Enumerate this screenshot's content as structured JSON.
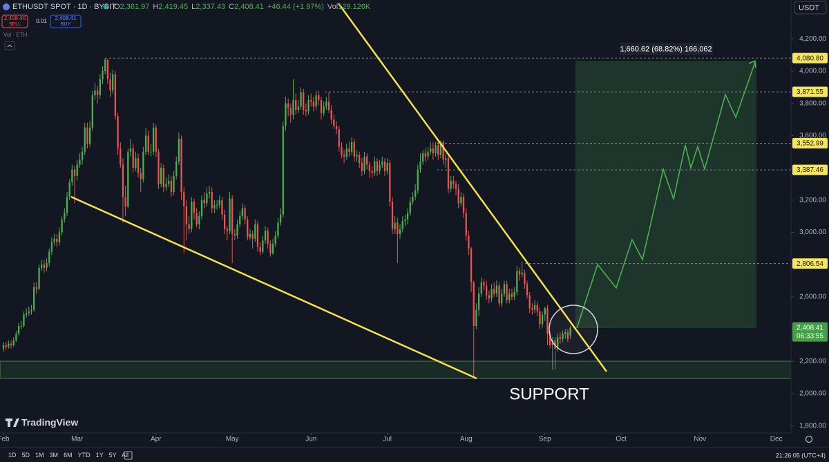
{
  "header": {
    "symbol": "ETHUSDT SPOT · 1D · BYBIT",
    "ohlc": [
      {
        "key": "O",
        "value": "2,361.97"
      },
      {
        "key": "H",
        "value": "2,419.45"
      },
      {
        "key": "L",
        "value": "2,337.43"
      },
      {
        "key": "C",
        "value": "2,408.41"
      }
    ],
    "change": "+46.44 (+1.97%)",
    "volume_key": "Vol",
    "volume": "129.126K",
    "sell_price": "2,408.40",
    "sell": "SELL",
    "spread": "0.01",
    "buy_price": "2,408.41",
    "buy": "BUY",
    "volume_pane": "Vol · ETH"
  },
  "currency": "USDT",
  "logo": "TradingView",
  "toolbar": {
    "ranges": [
      "1D",
      "5D",
      "1M",
      "3M",
      "6M",
      "YTD",
      "1Y",
      "5Y",
      "All"
    ],
    "clock": "21:26:05 (UTC+4)"
  },
  "chart_data": {
    "type": "candlestick",
    "up_color": "#4caf50",
    "down_color": "#ef5350",
    "grid": false,
    "xlim": [
      -1.36,
      309.8
    ],
    "xticks": [
      {
        "value": 0,
        "label": "Feb"
      },
      {
        "value": 29,
        "label": "Mar"
      },
      {
        "value": 60,
        "label": "Apr"
      },
      {
        "value": 90,
        "label": "May"
      },
      {
        "value": 121,
        "label": "Jun"
      },
      {
        "value": 151,
        "label": "Jul"
      },
      {
        "value": 182,
        "label": "Aug"
      },
      {
        "value": 213,
        "label": "Sep"
      },
      {
        "value": 243,
        "label": "Oct"
      },
      {
        "value": 274,
        "label": "Nov"
      },
      {
        "value": 304,
        "label": "Dec"
      }
    ],
    "ylim": [
      1756,
      4441
    ],
    "yticks": [
      {
        "value": 1800,
        "label": "1,800.00"
      },
      {
        "value": 2000,
        "label": "2,000.00"
      },
      {
        "value": 2200,
        "label": "2,200.00"
      },
      {
        "value": 2400,
        "label": "2,400.00"
      },
      {
        "value": 2600,
        "label": "2,600.00"
      },
      {
        "value": 2800,
        "label": "2,800.00"
      },
      {
        "value": 3000,
        "label": "3,000.00"
      },
      {
        "value": 3200,
        "label": "3,200.00"
      },
      {
        "value": 3400,
        "label": "3,400.00"
      },
      {
        "value": 3600,
        "label": "3,600.00"
      },
      {
        "value": 3800,
        "label": "3,800.00"
      },
      {
        "value": 4000,
        "label": "4,000.00"
      },
      {
        "value": 4200,
        "label": "4,200.00"
      }
    ],
    "price_levels": [
      {
        "value": 4080.8,
        "label": "4,080.80"
      },
      {
        "value": 3871.55,
        "label": "3,871.55"
      },
      {
        "value": 3552.99,
        "label": "3,552.99"
      },
      {
        "value": 3387.46,
        "label": "3,387.46"
      },
      {
        "value": 2806.54,
        "label": "2,806.54"
      }
    ],
    "last_price": {
      "value": 2408.41,
      "label": "2,408.41"
    },
    "countdown": "06:33:55",
    "measure_label": "1,660.62 (68.82%) 166,062",
    "annotation": "SUPPORT",
    "x": [
      0,
      1,
      2,
      3,
      4,
      5,
      6,
      7,
      8,
      9,
      10,
      11,
      12,
      13,
      14,
      15,
      16,
      17,
      18,
      19,
      20,
      21,
      22,
      23,
      24,
      25,
      26,
      27,
      28,
      29,
      30,
      31,
      32,
      33,
      34,
      35,
      36,
      37,
      38,
      39,
      40,
      41,
      42,
      43,
      44,
      45,
      46,
      47,
      48,
      49,
      50,
      51,
      52,
      53,
      54,
      55,
      56,
      57,
      58,
      59,
      60,
      61,
      62,
      63,
      64,
      65,
      66,
      67,
      68,
      69,
      70,
      71,
      72,
      73,
      74,
      75,
      76,
      77,
      78,
      79,
      80,
      81,
      82,
      83,
      84,
      85,
      86,
      87,
      88,
      89,
      90,
      91,
      92,
      93,
      94,
      95,
      96,
      97,
      98,
      99,
      100,
      101,
      102,
      103,
      104,
      105,
      106,
      107,
      108,
      109,
      110,
      111,
      112,
      113,
      114,
      115,
      116,
      117,
      118,
      119,
      120,
      121,
      122,
      123,
      124,
      125,
      126,
      127,
      128,
      129,
      130,
      131,
      132,
      133,
      134,
      135,
      136,
      137,
      138,
      139,
      140,
      141,
      142,
      143,
      144,
      145,
      146,
      147,
      148,
      149,
      150,
      151,
      152,
      153,
      154,
      155,
      156,
      157,
      158,
      159,
      160,
      161,
      162,
      163,
      164,
      165,
      166,
      167,
      168,
      169,
      170,
      171,
      172,
      173,
      174,
      175,
      176,
      177,
      178,
      179,
      180,
      181,
      182,
      183,
      184,
      185,
      186,
      187,
      188,
      189,
      190,
      191,
      192,
      193,
      194,
      195,
      196,
      197,
      198,
      199,
      200,
      201,
      202,
      203,
      204,
      205,
      206,
      207,
      208,
      209,
      210,
      211,
      212,
      213,
      214,
      215,
      216,
      217,
      218,
      219,
      220,
      221,
      222,
      223
    ],
    "open": [
      2280,
      2300,
      2290,
      2310,
      2300,
      2330,
      2370,
      2420,
      2420,
      2490,
      2500,
      2510,
      2520,
      2660,
      2650,
      2780,
      2800,
      2780,
      2810,
      2880,
      2940,
      2960,
      2940,
      3000,
      3080,
      3120,
      3220,
      3310,
      3390,
      3350,
      3420,
      3450,
      3500,
      3650,
      3550,
      3650,
      3850,
      3880,
      3850,
      3950,
      4000,
      4070,
      3950,
      3880,
      3980,
      3720,
      3520,
      3420,
      3220,
      3160,
      3500,
      3520,
      3400,
      3460,
      3370,
      3330,
      3500,
      3600,
      3500,
      3500,
      3650,
      3500,
      3300,
      3400,
      3280,
      3300,
      3320,
      3250,
      3350,
      3440,
      3580,
      3250,
      3160,
      3050,
      3020,
      3190,
      3120,
      3050,
      3100,
      3200,
      3180,
      3240,
      3250,
      3150,
      3170,
      3170,
      3200,
      3110,
      3020,
      3010,
      3210,
      2990,
      2980,
      3050,
      3100,
      3150,
      3080,
      2970,
      2990,
      2960,
      3050,
      2910,
      2880,
      2950,
      3010,
      2930,
      2870,
      2930,
      2980,
      3060,
      3110,
      3660,
      3800,
      3770,
      3730,
      3820,
      3760,
      3780,
      3870,
      3760,
      3750,
      3820,
      3810,
      3780,
      3850,
      3820,
      3740,
      3780,
      3810,
      3760,
      3700,
      3660,
      3640,
      3530,
      3480,
      3470,
      3520,
      3500,
      3560,
      3470,
      3480,
      3430,
      3380,
      3470,
      3420,
      3380,
      3370,
      3440,
      3380,
      3420,
      3440,
      3380,
      3430,
      3190,
      3020,
      3060,
      2990,
      3020,
      3070,
      3080,
      3120,
      3190,
      3220,
      3260,
      3390,
      3440,
      3490,
      3470,
      3500,
      3520,
      3490,
      3540,
      3480,
      3560,
      3450,
      3460,
      3270,
      3320,
      3300,
      3270,
      3180,
      3220,
      3120,
      2980,
      2900,
      2690,
      2420,
      2520,
      2620,
      2690,
      2670,
      2610,
      2590,
      2650,
      2620,
      2670,
      2560,
      2620,
      2680,
      2580,
      2620,
      2600,
      2630,
      2760,
      2740,
      2750,
      2680,
      2610,
      2530,
      2520,
      2550,
      2510,
      2430,
      2490,
      2530,
      2370,
      2300,
      2330,
      2280,
      2350,
      2340,
      2370,
      2380,
      2361.97
    ],
    "high": [
      2320,
      2320,
      2330,
      2330,
      2350,
      2390,
      2440,
      2450,
      2510,
      2530,
      2540,
      2550,
      2690,
      2690,
      2800,
      2830,
      2830,
      2840,
      2900,
      2970,
      2990,
      2990,
      3030,
      3100,
      3150,
      3250,
      3330,
      3420,
      3410,
      3450,
      3490,
      3530,
      3680,
      3680,
      3690,
      3880,
      3930,
      3910,
      3980,
      4030,
      4080.8,
      4075,
      3990,
      4010,
      4000,
      3740,
      3560,
      3460,
      3290,
      3520,
      3580,
      3550,
      3500,
      3490,
      3400,
      3530,
      3650,
      3630,
      3550,
      3680,
      3670,
      3520,
      3430,
      3420,
      3340,
      3360,
      3350,
      3380,
      3470,
      3620,
      3600,
      3280,
      3200,
      3100,
      3220,
      3210,
      3150,
      3130,
      3230,
      3250,
      3280,
      3290,
      3280,
      3200,
      3200,
      3230,
      3220,
      3140,
      3040,
      3250,
      3230,
      3020,
      3080,
      3130,
      3180,
      3170,
      3100,
      3020,
      3010,
      3080,
      3070,
      2940,
      2980,
      3040,
      3030,
      2950,
      2960,
      3010,
      3090,
      3150,
      3690,
      3840,
      3830,
      3800,
      3950,
      3860,
      3820,
      3900,
      3890,
      3800,
      3850,
      3860,
      3840,
      3880,
      3880,
      3840,
      3810,
      3840,
      3870,
      3790,
      3730,
      3690,
      3660,
      3560,
      3510,
      3550,
      3560,
      3590,
      3580,
      3510,
      3500,
      3460,
      3500,
      3490,
      3440,
      3410,
      3470,
      3460,
      3450,
      3470,
      3460,
      3460,
      3450,
      3220,
      3100,
      3090,
      3050,
      3100,
      3110,
      3150,
      3220,
      3250,
      3300,
      3420,
      3490,
      3510,
      3520,
      3530,
      3560,
      3560,
      3560,
      3570,
      3570,
      3570,
      3490,
      3480,
      3350,
      3350,
      3320,
      3300,
      3250,
      3240,
      3150,
      3010,
      2910,
      2700,
      2560,
      2660,
      2720,
      2710,
      2700,
      2640,
      2680,
      2690,
      2700,
      2690,
      2650,
      2700,
      2700,
      2650,
      2650,
      2660,
      2790,
      2780,
      2820,
      2770,
      2700,
      2630,
      2560,
      2580,
      2570,
      2530,
      2510,
      2540,
      2550,
      2390,
      2350,
      2350,
      2370,
      2380,
      2390,
      2400,
      2400,
      2419.45
    ],
    "low": [
      2260,
      2270,
      2280,
      2280,
      2290,
      2320,
      2360,
      2400,
      2410,
      2470,
      2480,
      2490,
      2510,
      2620,
      2640,
      2760,
      2750,
      2760,
      2790,
      2860,
      2920,
      2910,
      2920,
      2980,
      3060,
      3100,
      3200,
      3290,
      3180,
      3320,
      3400,
      3420,
      3480,
      3520,
      3530,
      3630,
      3820,
      3800,
      3830,
      3920,
      3980,
      3920,
      3840,
      3860,
      3700,
      3480,
      3400,
      3060,
      3100,
      3150,
      3470,
      3370,
      3380,
      3340,
      3250,
      3310,
      3480,
      3480,
      3470,
      3480,
      3470,
      3270,
      3280,
      3250,
      3260,
      3280,
      3220,
      3230,
      3330,
      3420,
      3200,
      2870,
      2950,
      2990,
      3000,
      3080,
      3030,
      3020,
      3080,
      3150,
      3160,
      3210,
      3120,
      3120,
      3140,
      3150,
      3080,
      2990,
      2950,
      2990,
      2810,
      2950,
      2960,
      3030,
      3080,
      3050,
      2950,
      2950,
      2900,
      2940,
      2880,
      2860,
      2870,
      2930,
      2900,
      2850,
      2860,
      2910,
      2960,
      3040,
      3090,
      3630,
      3720,
      3680,
      3700,
      3730,
      3740,
      3760,
      3730,
      3720,
      3730,
      3780,
      3750,
      3760,
      3790,
      3700,
      3720,
      3760,
      3740,
      3670,
      3640,
      3610,
      3500,
      3460,
      3430,
      3450,
      3470,
      3480,
      3440,
      3440,
      3400,
      3350,
      3360,
      3390,
      3340,
      3340,
      3350,
      3350,
      3360,
      3400,
      3350,
      3360,
      3160,
      2990,
      2990,
      2810,
      2960,
      3000,
      3040,
      3050,
      3100,
      3170,
      3200,
      3240,
      3370,
      3420,
      3440,
      3450,
      3480,
      3450,
      3470,
      3450,
      3460,
      3420,
      3400,
      3240,
      3250,
      3270,
      3230,
      3150,
      3160,
      3090,
      2950,
      2860,
      2630,
      2100,
      2400,
      2480,
      2600,
      2640,
      2580,
      2560,
      2570,
      2600,
      2600,
      2540,
      2540,
      2600,
      2560,
      2560,
      2580,
      2580,
      2610,
      2700,
      2720,
      2650,
      2590,
      2500,
      2490,
      2500,
      2480,
      2400,
      2410,
      2450,
      2300,
      2280,
      2150,
      2150,
      2260,
      2310,
      2320,
      2340,
      2320,
      2337.43
    ],
    "close": [
      2300,
      2290,
      2310,
      2300,
      2330,
      2370,
      2420,
      2420,
      2490,
      2500,
      2510,
      2520,
      2660,
      2650,
      2780,
      2800,
      2780,
      2810,
      2880,
      2940,
      2960,
      2940,
      3000,
      3080,
      3120,
      3220,
      3310,
      3390,
      3350,
      3420,
      3450,
      3500,
      3650,
      3550,
      3650,
      3850,
      3880,
      3850,
      3950,
      4000,
      4070,
      3950,
      3880,
      3980,
      3720,
      3520,
      3420,
      3220,
      3160,
      3500,
      3520,
      3400,
      3460,
      3370,
      3330,
      3500,
      3600,
      3500,
      3500,
      3650,
      3500,
      3300,
      3400,
      3280,
      3300,
      3320,
      3250,
      3350,
      3440,
      3580,
      3250,
      3160,
      3050,
      3020,
      3190,
      3120,
      3050,
      3100,
      3200,
      3180,
      3240,
      3250,
      3150,
      3170,
      3170,
      3200,
      3110,
      3020,
      3010,
      3210,
      2990,
      2980,
      3050,
      3100,
      3150,
      3080,
      2970,
      2990,
      2960,
      3050,
      2910,
      2880,
      2950,
      3010,
      2930,
      2870,
      2930,
      2980,
      3060,
      3110,
      3660,
      3800,
      3770,
      3730,
      3820,
      3760,
      3780,
      3870,
      3760,
      3750,
      3820,
      3810,
      3780,
      3850,
      3820,
      3740,
      3780,
      3810,
      3760,
      3700,
      3660,
      3640,
      3530,
      3480,
      3470,
      3520,
      3500,
      3560,
      3470,
      3480,
      3430,
      3380,
      3470,
      3420,
      3380,
      3370,
      3440,
      3380,
      3420,
      3440,
      3380,
      3430,
      3190,
      3020,
      3060,
      2990,
      3020,
      3070,
      3080,
      3120,
      3190,
      3220,
      3260,
      3390,
      3440,
      3490,
      3470,
      3500,
      3520,
      3490,
      3540,
      3480,
      3560,
      3450,
      3460,
      3270,
      3320,
      3300,
      3270,
      3180,
      3220,
      3120,
      2980,
      2900,
      2690,
      2420,
      2520,
      2620,
      2690,
      2670,
      2610,
      2590,
      2650,
      2620,
      2670,
      2560,
      2620,
      2680,
      2580,
      2620,
      2600,
      2630,
      2760,
      2740,
      2750,
      2680,
      2610,
      2530,
      2520,
      2550,
      2510,
      2430,
      2490,
      2530,
      2370,
      2300,
      2330,
      2280,
      2350,
      2340,
      2370,
      2380,
      2340,
      2408.41
    ]
  }
}
